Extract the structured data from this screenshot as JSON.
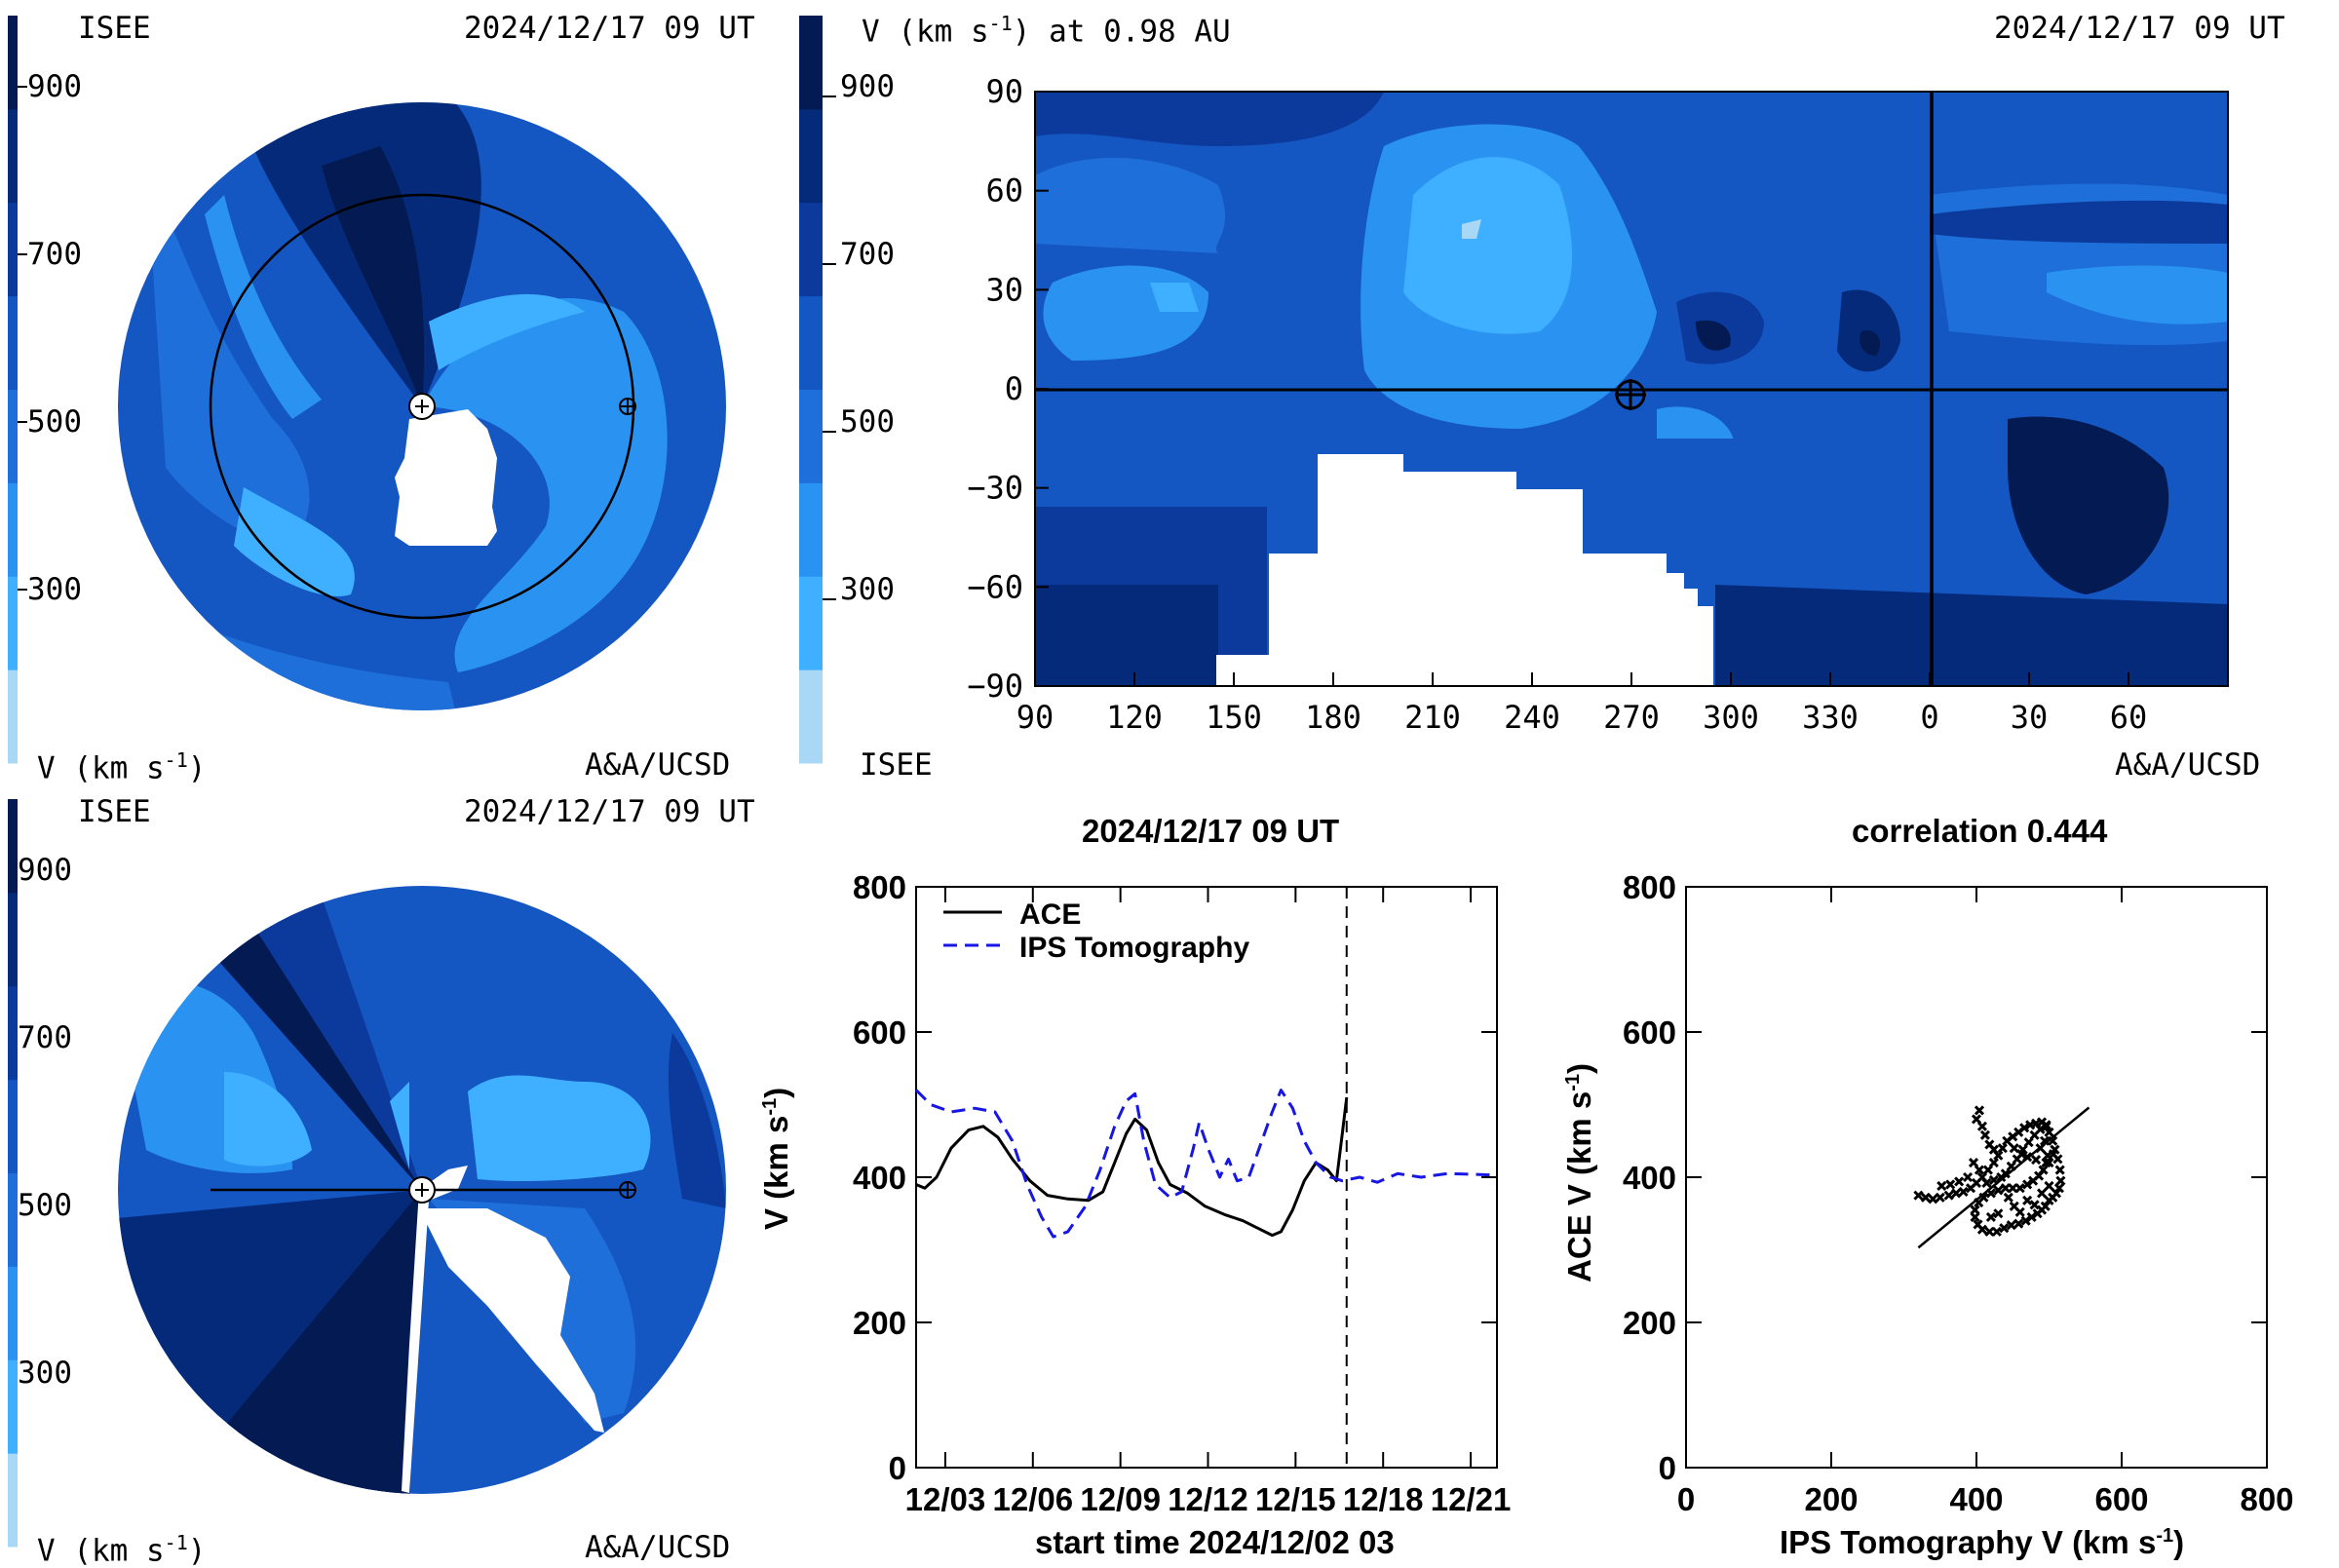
{
  "palette": {
    "levels": [
      "#a9d8f7",
      "#3fb0ff",
      "#2a93f2",
      "#1e6fd9",
      "#1456c2",
      "#0b3a9c",
      "#062a7a",
      "#031a52"
    ],
    "background": "#ffffff"
  },
  "panel_top_left": {
    "org": "ISEE",
    "timestamp": "2024/12/17 09 UT",
    "colorbar_ticks": [
      "900",
      "700",
      "500",
      "300"
    ],
    "unit_label": "V (km s",
    "unit_sup": "-1",
    "unit_close": ")",
    "credit": "A&A/UCSD",
    "markers": [
      "sun-marker",
      "earth-marker",
      "orbit-circle"
    ]
  },
  "panel_top_right": {
    "title_prefix": "V (km s",
    "title_sup": "-1",
    "title_suffix": ") at 0.98 AU",
    "timestamp": "2024/12/17 09 UT",
    "colorbar_ticks": [
      "900",
      "700",
      "500",
      "300"
    ],
    "org": "ISEE",
    "credit": "A&A/UCSD",
    "lat_ticks": [
      "90",
      "60",
      "30",
      "0",
      "−30",
      "−60",
      "−90"
    ],
    "lon_ticks": [
      "90",
      "120",
      "150",
      "180",
      "210",
      "240",
      "270",
      "300",
      "330",
      "0",
      "30",
      "60"
    ]
  },
  "panel_bottom_left": {
    "org": "ISEE",
    "timestamp": "2024/12/17 09 UT",
    "colorbar_ticks": [
      "900",
      "700",
      "500",
      "300"
    ],
    "unit_label": "V (km s",
    "unit_sup": "-1",
    "unit_close": ")",
    "credit": "A&A/UCSD"
  },
  "chart_data": [
    {
      "type": "line",
      "title": "2024/12/17 09 UT",
      "xlabel": "start time 2024/12/02 03",
      "ylabel_prefix": "V (km s",
      "ylabel_sup": "-1",
      "ylabel_suffix": ")",
      "x_tick_labels": [
        "12/03",
        "12/06",
        "12/09",
        "12/12",
        "12/15",
        "12/18",
        "12/21"
      ],
      "x_tick_days": [
        1,
        4,
        7,
        10,
        13,
        16,
        19
      ],
      "x_range_days": [
        0.0,
        19.9
      ],
      "ylim": [
        0,
        800
      ],
      "y_ticks": [
        "0",
        "200",
        "400",
        "600",
        "800"
      ],
      "now_marker_day": 14.75,
      "legend": "top-left",
      "series": [
        {
          "name": "ACE",
          "style": "solid",
          "color": "#000000",
          "points": [
            [
              0.0,
              390
            ],
            [
              0.3,
              385
            ],
            [
              0.7,
              400
            ],
            [
              1.2,
              440
            ],
            [
              1.8,
              465
            ],
            [
              2.3,
              470
            ],
            [
              2.8,
              455
            ],
            [
              3.3,
              425
            ],
            [
              3.9,
              395
            ],
            [
              4.5,
              375
            ],
            [
              5.2,
              370
            ],
            [
              5.9,
              368
            ],
            [
              6.4,
              380
            ],
            [
              6.8,
              420
            ],
            [
              7.2,
              460
            ],
            [
              7.5,
              480
            ],
            [
              7.9,
              465
            ],
            [
              8.3,
              420
            ],
            [
              8.7,
              390
            ],
            [
              9.3,
              378
            ],
            [
              9.9,
              360
            ],
            [
              10.6,
              348
            ],
            [
              11.2,
              340
            ],
            [
              11.7,
              330
            ],
            [
              12.2,
              320
            ],
            [
              12.5,
              325
            ],
            [
              12.9,
              355
            ],
            [
              13.3,
              395
            ],
            [
              13.7,
              420
            ],
            [
              14.1,
              410
            ],
            [
              14.4,
              395
            ],
            [
              14.6,
              460
            ],
            [
              14.75,
              510
            ]
          ]
        },
        {
          "name": "IPS Tomography",
          "style": "dashed",
          "color": "#1616e6",
          "points": [
            [
              0.0,
              520
            ],
            [
              0.5,
              500
            ],
            [
              1.2,
              490
            ],
            [
              2.0,
              495
            ],
            [
              2.7,
              490
            ],
            [
              3.3,
              450
            ],
            [
              3.8,
              390
            ],
            [
              4.3,
              345
            ],
            [
              4.7,
              318
            ],
            [
              5.2,
              325
            ],
            [
              5.8,
              360
            ],
            [
              6.3,
              410
            ],
            [
              6.8,
              470
            ],
            [
              7.2,
              505
            ],
            [
              7.5,
              515
            ],
            [
              7.8,
              450
            ],
            [
              8.2,
              390
            ],
            [
              8.7,
              372
            ],
            [
              9.1,
              380
            ],
            [
              9.5,
              440
            ],
            [
              9.7,
              475
            ],
            [
              10.0,
              440
            ],
            [
              10.4,
              400
            ],
            [
              10.7,
              425
            ],
            [
              11.0,
              395
            ],
            [
              11.4,
              400
            ],
            [
              11.8,
              445
            ],
            [
              12.2,
              490
            ],
            [
              12.5,
              520
            ],
            [
              12.9,
              495
            ],
            [
              13.3,
              450
            ],
            [
              13.7,
              420
            ],
            [
              14.2,
              400
            ],
            [
              14.6,
              395
            ],
            [
              15.2,
              400
            ],
            [
              15.8,
              393
            ],
            [
              16.5,
              405
            ],
            [
              17.3,
              400
            ],
            [
              18.2,
              405
            ],
            [
              19.9,
              403
            ]
          ]
        }
      ]
    },
    {
      "type": "scatter",
      "title": "correlation 0.444",
      "xlabel_prefix": "IPS Tomography V (km s",
      "xlabel_sup": "-1",
      "xlabel_suffix": ")",
      "ylabel_prefix": "ACE V (km s",
      "ylabel_sup": "-1",
      "ylabel_suffix": ")",
      "xlim": [
        0,
        800
      ],
      "ylim": [
        0,
        800
      ],
      "x_ticks": [
        "0",
        "200",
        "400",
        "600",
        "800"
      ],
      "y_ticks": [
        "0",
        "200",
        "400",
        "600",
        "800"
      ],
      "fit_line": [
        [
          320,
          303
        ],
        [
          555,
          496
        ]
      ],
      "points": [
        [
          320,
          375
        ],
        [
          330,
          372
        ],
        [
          340,
          370
        ],
        [
          350,
          372
        ],
        [
          362,
          375
        ],
        [
          372,
          378
        ],
        [
          382,
          380
        ],
        [
          392,
          385
        ],
        [
          400,
          392
        ],
        [
          408,
          400
        ],
        [
          416,
          410
        ],
        [
          424,
          420
        ],
        [
          430,
          430
        ],
        [
          436,
          440
        ],
        [
          442,
          450
        ],
        [
          450,
          456
        ],
        [
          458,
          462
        ],
        [
          466,
          468
        ],
        [
          474,
          472
        ],
        [
          482,
          474
        ],
        [
          490,
          476
        ],
        [
          496,
          472
        ],
        [
          500,
          462
        ],
        [
          505,
          450
        ],
        [
          508,
          438
        ],
        [
          512,
          425
        ],
        [
          515,
          410
        ],
        [
          516,
          395
        ],
        [
          514,
          385
        ],
        [
          510,
          378
        ],
        [
          505,
          372
        ],
        [
          500,
          368
        ],
        [
          495,
          360
        ],
        [
          490,
          355
        ],
        [
          484,
          350
        ],
        [
          476,
          345
        ],
        [
          468,
          340
        ],
        [
          458,
          336
        ],
        [
          448,
          334
        ],
        [
          438,
          330
        ],
        [
          428,
          325
        ],
        [
          418,
          325
        ],
        [
          408,
          328
        ],
        [
          402,
          335
        ],
        [
          398,
          345
        ],
        [
          398,
          355
        ],
        [
          403,
          365
        ],
        [
          410,
          372
        ],
        [
          420,
          378
        ],
        [
          430,
          382
        ],
        [
          440,
          385
        ],
        [
          450,
          385
        ],
        [
          460,
          385
        ],
        [
          470,
          390
        ],
        [
          478,
          395
        ],
        [
          486,
          402
        ],
        [
          492,
          410
        ],
        [
          496,
          420
        ],
        [
          498,
          430
        ],
        [
          404,
          492
        ],
        [
          400,
          480
        ],
        [
          408,
          470
        ],
        [
          412,
          458
        ],
        [
          418,
          445
        ],
        [
          424,
          438
        ],
        [
          396,
          420
        ],
        [
          404,
          410
        ],
        [
          452,
          440
        ],
        [
          462,
          432
        ],
        [
          470,
          428
        ],
        [
          482,
          424
        ],
        [
          488,
          440
        ],
        [
          494,
          450
        ],
        [
          470,
          368
        ],
        [
          480,
          362
        ],
        [
          490,
          378
        ],
        [
          500,
          388
        ],
        [
          444,
          372
        ],
        [
          452,
          360
        ],
        [
          460,
          352
        ],
        [
          430,
          350
        ],
        [
          420,
          345
        ],
        [
          440,
          405
        ],
        [
          448,
          415
        ],
        [
          456,
          425
        ],
        [
          464,
          438
        ],
        [
          472,
          448
        ],
        [
          480,
          458
        ],
        [
          488,
          466
        ],
        [
          496,
          470
        ],
        [
          352,
          388
        ],
        [
          364,
          390
        ],
        [
          376,
          394
        ],
        [
          388,
          400
        ],
        [
          414,
          392
        ],
        [
          424,
          396
        ],
        [
          434,
          400
        ],
        [
          500,
          420
        ],
        [
          506,
          432
        ]
      ]
    }
  ]
}
